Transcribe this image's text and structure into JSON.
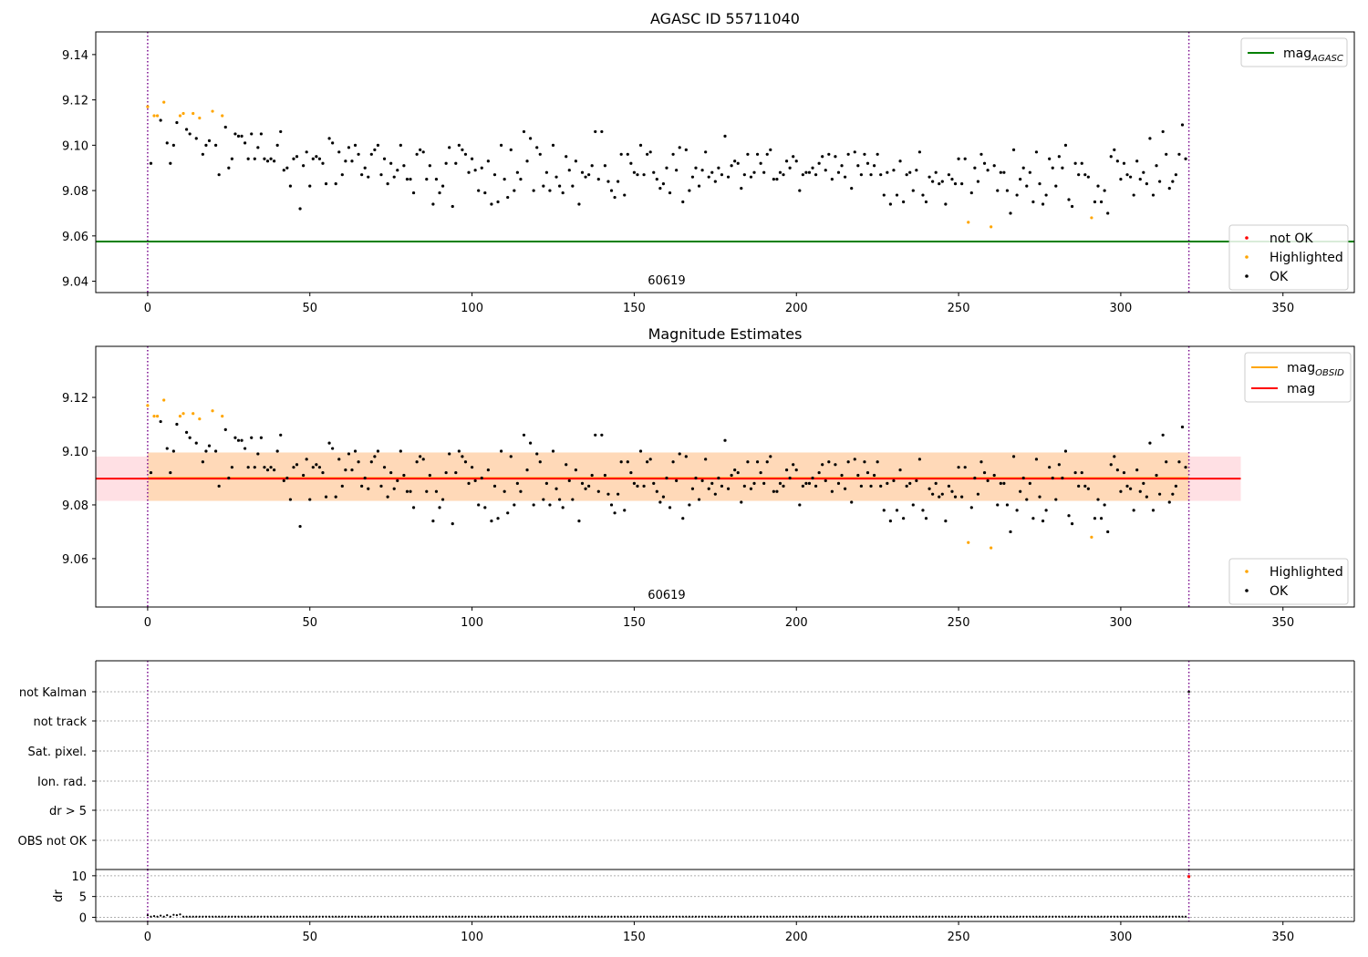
{
  "chart_data": [
    {
      "type": "scatter",
      "title": "AGASC ID 55711040",
      "ylim": [
        9.035,
        9.15
      ],
      "xlim": [
        -16,
        372
      ],
      "xticks": [
        0,
        50,
        100,
        150,
        200,
        250,
        300,
        350
      ],
      "yticks": [
        "9.04",
        "9.06",
        "9.08",
        "9.10",
        "9.12",
        "9.14"
      ],
      "hlines": [
        {
          "name": "mag_AGASC",
          "y": 9.0575,
          "color": "#008000"
        }
      ],
      "vlines": [
        0,
        321
      ],
      "obsid_label": {
        "text": "60619",
        "x": 160
      },
      "legend_lines": [
        {
          "label": "mag",
          "sub": "AGASC",
          "color": "#008000"
        }
      ],
      "legend_points": [
        {
          "label": "not OK",
          "color": "#ff0000"
        },
        {
          "label": "Highlighted",
          "color": "#ffa500"
        },
        {
          "label": "OK",
          "color": "#000000"
        }
      ],
      "series": "shared.points"
    },
    {
      "type": "scatter",
      "title": "Magnitude Estimates",
      "ylim": [
        9.042,
        9.139
      ],
      "xlim": [
        -16,
        372
      ],
      "xticks": [
        0,
        50,
        100,
        150,
        200,
        250,
        300,
        350
      ],
      "yticks": [
        "9.06",
        "9.08",
        "9.10",
        "9.12"
      ],
      "hlines": [
        {
          "name": "mag_OBSID",
          "y": 9.09,
          "color": "#ffa500",
          "xrange": [
            0,
            321
          ],
          "band": [
            9.0815,
            9.0995
          ],
          "band_color": "#ffd9b8"
        },
        {
          "name": "mag",
          "y": 9.0898,
          "color": "#ff0000",
          "xrange": [
            -16,
            337
          ],
          "band": [
            9.0815,
            9.098
          ],
          "band_color": "#ffe0e4"
        }
      ],
      "vlines": [
        0,
        321
      ],
      "obsid_label": {
        "text": "60619",
        "x": 160
      },
      "legend_lines": [
        {
          "label": "mag",
          "sub": "OBSID",
          "color": "#ffa500"
        },
        {
          "label": "mag",
          "sub": "",
          "color": "#ff0000"
        }
      ],
      "legend_points": [
        {
          "label": "Highlighted",
          "color": "#ffa500"
        },
        {
          "label": "OK",
          "color": "#000000"
        }
      ]
    },
    {
      "type": "flags",
      "categories": [
        "not Kalman",
        "not track",
        "Sat. pixel.",
        "Ion. rad.",
        "dr > 5",
        "OBS not OK"
      ],
      "xlim": [
        -16,
        372
      ],
      "xticks": [
        0,
        50,
        100,
        150,
        200,
        250,
        300,
        350
      ],
      "vlines": [
        0,
        321
      ]
    },
    {
      "type": "scatter",
      "ylabel": "dr",
      "ylim": [
        -1,
        11.5
      ],
      "yticks": [
        0,
        5,
        10
      ],
      "xlim": [
        -16,
        372
      ],
      "xticks": [
        0,
        50,
        100,
        150,
        200,
        250,
        300,
        350
      ],
      "vlines": [
        0,
        321
      ]
    }
  ],
  "shared": {
    "highlighted": [
      [
        0,
        9.117
      ],
      [
        2,
        9.113
      ],
      [
        3,
        9.113
      ],
      [
        5,
        9.119
      ],
      [
        10,
        9.113
      ],
      [
        11,
        9.114
      ],
      [
        14,
        9.114
      ],
      [
        16,
        9.112
      ],
      [
        20,
        9.115
      ],
      [
        23,
        9.113
      ],
      [
        253,
        9.066
      ],
      [
        260,
        9.064
      ],
      [
        291,
        9.068
      ]
    ],
    "points": [
      [
        1,
        9.092
      ],
      [
        4,
        9.111
      ],
      [
        6,
        9.101
      ],
      [
        7,
        9.092
      ],
      [
        8,
        9.1
      ],
      [
        9,
        9.11
      ],
      [
        12,
        9.107
      ],
      [
        13,
        9.105
      ],
      [
        15,
        9.103
      ],
      [
        17,
        9.096
      ],
      [
        18,
        9.1
      ],
      [
        19,
        9.102
      ],
      [
        21,
        9.1
      ],
      [
        22,
        9.087
      ],
      [
        24,
        9.108
      ],
      [
        25,
        9.09
      ],
      [
        26,
        9.094
      ],
      [
        27,
        9.105
      ],
      [
        28,
        9.104
      ],
      [
        29,
        9.104
      ],
      [
        30,
        9.101
      ],
      [
        31,
        9.094
      ],
      [
        32,
        9.105
      ],
      [
        33,
        9.094
      ],
      [
        34,
        9.099
      ],
      [
        35,
        9.105
      ],
      [
        36,
        9.094
      ],
      [
        37,
        9.093
      ],
      [
        38,
        9.094
      ],
      [
        39,
        9.093
      ],
      [
        40,
        9.1
      ],
      [
        41,
        9.106
      ],
      [
        42,
        9.089
      ],
      [
        43,
        9.09
      ],
      [
        44,
        9.082
      ],
      [
        45,
        9.094
      ],
      [
        46,
        9.095
      ],
      [
        47,
        9.072
      ],
      [
        48,
        9.091
      ],
      [
        49,
        9.097
      ],
      [
        50,
        9.082
      ],
      [
        51,
        9.094
      ],
      [
        52,
        9.095
      ],
      [
        53,
        9.094
      ],
      [
        54,
        9.092
      ],
      [
        55,
        9.083
      ],
      [
        56,
        9.103
      ],
      [
        57,
        9.101
      ],
      [
        58,
        9.083
      ],
      [
        59,
        9.097
      ],
      [
        60,
        9.087
      ],
      [
        61,
        9.093
      ],
      [
        62,
        9.099
      ],
      [
        63,
        9.093
      ],
      [
        64,
        9.1
      ],
      [
        65,
        9.096
      ],
      [
        66,
        9.087
      ],
      [
        67,
        9.09
      ],
      [
        68,
        9.086
      ],
      [
        69,
        9.096
      ],
      [
        70,
        9.098
      ],
      [
        71,
        9.1
      ],
      [
        72,
        9.087
      ],
      [
        73,
        9.094
      ],
      [
        74,
        9.083
      ],
      [
        75,
        9.092
      ],
      [
        76,
        9.086
      ],
      [
        77,
        9.089
      ],
      [
        78,
        9.1
      ],
      [
        79,
        9.091
      ],
      [
        80,
        9.085
      ],
      [
        81,
        9.085
      ],
      [
        82,
        9.079
      ],
      [
        83,
        9.096
      ],
      [
        84,
        9.098
      ],
      [
        85,
        9.097
      ],
      [
        86,
        9.085
      ],
      [
        87,
        9.091
      ],
      [
        88,
        9.074
      ],
      [
        89,
        9.085
      ],
      [
        90,
        9.079
      ],
      [
        91,
        9.082
      ],
      [
        92,
        9.092
      ],
      [
        93,
        9.099
      ],
      [
        94,
        9.073
      ],
      [
        95,
        9.092
      ],
      [
        96,
        9.1
      ],
      [
        97,
        9.098
      ],
      [
        98,
        9.096
      ],
      [
        99,
        9.088
      ],
      [
        100,
        9.094
      ],
      [
        101,
        9.089
      ],
      [
        102,
        9.08
      ],
      [
        103,
        9.09
      ],
      [
        104,
        9.079
      ],
      [
        105,
        9.093
      ],
      [
        106,
        9.074
      ],
      [
        107,
        9.087
      ],
      [
        108,
        9.075
      ],
      [
        109,
        9.1
      ],
      [
        110,
        9.085
      ],
      [
        111,
        9.077
      ],
      [
        112,
        9.098
      ],
      [
        113,
        9.08
      ],
      [
        114,
        9.088
      ],
      [
        115,
        9.085
      ],
      [
        116,
        9.106
      ],
      [
        117,
        9.093
      ],
      [
        118,
        9.103
      ],
      [
        119,
        9.08
      ],
      [
        120,
        9.099
      ],
      [
        121,
        9.096
      ],
      [
        122,
        9.082
      ],
      [
        123,
        9.088
      ],
      [
        124,
        9.08
      ],
      [
        125,
        9.1
      ],
      [
        126,
        9.086
      ],
      [
        127,
        9.082
      ],
      [
        128,
        9.079
      ],
      [
        129,
        9.095
      ],
      [
        130,
        9.089
      ],
      [
        131,
        9.082
      ],
      [
        132,
        9.093
      ],
      [
        133,
        9.074
      ],
      [
        134,
        9.088
      ],
      [
        135,
        9.086
      ],
      [
        136,
        9.087
      ],
      [
        137,
        9.091
      ],
      [
        138,
        9.106
      ],
      [
        139,
        9.085
      ],
      [
        140,
        9.106
      ],
      [
        141,
        9.091
      ],
      [
        142,
        9.084
      ],
      [
        143,
        9.08
      ],
      [
        144,
        9.077
      ],
      [
        145,
        9.084
      ],
      [
        146,
        9.096
      ],
      [
        147,
        9.078
      ],
      [
        148,
        9.096
      ],
      [
        149,
        9.092
      ],
      [
        150,
        9.088
      ],
      [
        151,
        9.087
      ],
      [
        152,
        9.1
      ],
      [
        153,
        9.087
      ],
      [
        154,
        9.096
      ],
      [
        155,
        9.097
      ],
      [
        156,
        9.088
      ],
      [
        157,
        9.085
      ],
      [
        158,
        9.081
      ],
      [
        159,
        9.083
      ],
      [
        160,
        9.09
      ],
      [
        161,
        9.079
      ],
      [
        162,
        9.096
      ],
      [
        163,
        9.089
      ],
      [
        164,
        9.099
      ],
      [
        165,
        9.075
      ],
      [
        166,
        9.098
      ],
      [
        167,
        9.08
      ],
      [
        168,
        9.086
      ],
      [
        169,
        9.09
      ],
      [
        170,
        9.082
      ],
      [
        171,
        9.089
      ],
      [
        172,
        9.097
      ],
      [
        173,
        9.086
      ],
      [
        174,
        9.088
      ],
      [
        175,
        9.084
      ],
      [
        176,
        9.09
      ],
      [
        177,
        9.087
      ],
      [
        178,
        9.104
      ],
      [
        179,
        9.086
      ],
      [
        180,
        9.091
      ],
      [
        181,
        9.093
      ],
      [
        182,
        9.092
      ],
      [
        183,
        9.081
      ],
      [
        184,
        9.087
      ],
      [
        185,
        9.096
      ],
      [
        186,
        9.086
      ],
      [
        187,
        9.088
      ],
      [
        188,
        9.096
      ],
      [
        189,
        9.092
      ],
      [
        190,
        9.088
      ],
      [
        191,
        9.096
      ],
      [
        192,
        9.098
      ],
      [
        193,
        9.085
      ],
      [
        194,
        9.085
      ],
      [
        195,
        9.088
      ],
      [
        196,
        9.087
      ],
      [
        197,
        9.093
      ],
      [
        198,
        9.09
      ],
      [
        199,
        9.095
      ],
      [
        200,
        9.093
      ],
      [
        201,
        9.08
      ],
      [
        202,
        9.087
      ],
      [
        203,
        9.088
      ],
      [
        204,
        9.088
      ],
      [
        205,
        9.09
      ],
      [
        206,
        9.087
      ],
      [
        207,
        9.092
      ],
      [
        208,
        9.095
      ],
      [
        209,
        9.089
      ],
      [
        210,
        9.096
      ],
      [
        211,
        9.085
      ],
      [
        212,
        9.095
      ],
      [
        213,
        9.088
      ],
      [
        214,
        9.091
      ],
      [
        215,
        9.086
      ],
      [
        216,
        9.096
      ],
      [
        217,
        9.081
      ],
      [
        218,
        9.097
      ],
      [
        219,
        9.091
      ],
      [
        220,
        9.087
      ],
      [
        221,
        9.096
      ],
      [
        222,
        9.092
      ],
      [
        223,
        9.087
      ],
      [
        224,
        9.091
      ],
      [
        225,
        9.096
      ],
      [
        226,
        9.087
      ],
      [
        227,
        9.078
      ],
      [
        228,
        9.088
      ],
      [
        229,
        9.074
      ],
      [
        230,
        9.089
      ],
      [
        231,
        9.078
      ],
      [
        232,
        9.093
      ],
      [
        233,
        9.075
      ],
      [
        234,
        9.087
      ],
      [
        235,
        9.088
      ],
      [
        236,
        9.08
      ],
      [
        237,
        9.089
      ],
      [
        238,
        9.097
      ],
      [
        239,
        9.078
      ],
      [
        240,
        9.075
      ],
      [
        241,
        9.086
      ],
      [
        242,
        9.084
      ],
      [
        243,
        9.088
      ],
      [
        244,
        9.083
      ],
      [
        245,
        9.084
      ],
      [
        246,
        9.074
      ],
      [
        247,
        9.087
      ],
      [
        248,
        9.085
      ],
      [
        249,
        9.083
      ],
      [
        250,
        9.094
      ],
      [
        251,
        9.083
      ],
      [
        252,
        9.094
      ],
      [
        254,
        9.079
      ],
      [
        255,
        9.09
      ],
      [
        256,
        9.084
      ],
      [
        257,
        9.096
      ],
      [
        258,
        9.092
      ],
      [
        259,
        9.089
      ],
      [
        261,
        9.091
      ],
      [
        262,
        9.08
      ],
      [
        263,
        9.088
      ],
      [
        264,
        9.088
      ],
      [
        265,
        9.08
      ],
      [
        266,
        9.07
      ],
      [
        267,
        9.098
      ],
      [
        268,
        9.078
      ],
      [
        269,
        9.085
      ],
      [
        270,
        9.09
      ],
      [
        271,
        9.082
      ],
      [
        272,
        9.088
      ],
      [
        273,
        9.075
      ],
      [
        274,
        9.097
      ],
      [
        275,
        9.083
      ],
      [
        276,
        9.074
      ],
      [
        277,
        9.078
      ],
      [
        278,
        9.094
      ],
      [
        279,
        9.09
      ],
      [
        280,
        9.082
      ],
      [
        281,
        9.095
      ],
      [
        282,
        9.09
      ],
      [
        283,
        9.1
      ],
      [
        284,
        9.076
      ],
      [
        285,
        9.073
      ],
      [
        286,
        9.092
      ],
      [
        287,
        9.087
      ],
      [
        288,
        9.092
      ],
      [
        289,
        9.087
      ],
      [
        290,
        9.086
      ],
      [
        292,
        9.075
      ],
      [
        293,
        9.082
      ],
      [
        294,
        9.075
      ],
      [
        295,
        9.08
      ],
      [
        296,
        9.07
      ],
      [
        297,
        9.095
      ],
      [
        298,
        9.098
      ],
      [
        299,
        9.093
      ],
      [
        300,
        9.085
      ],
      [
        301,
        9.092
      ],
      [
        302,
        9.087
      ],
      [
        303,
        9.086
      ],
      [
        304,
        9.078
      ],
      [
        305,
        9.093
      ],
      [
        306,
        9.085
      ],
      [
        307,
        9.088
      ],
      [
        308,
        9.083
      ],
      [
        309,
        9.103
      ],
      [
        310,
        9.078
      ],
      [
        311,
        9.091
      ],
      [
        312,
        9.084
      ],
      [
        313,
        9.106
      ],
      [
        314,
        9.096
      ],
      [
        315,
        9.081
      ],
      [
        316,
        9.084
      ],
      [
        317,
        9.087
      ],
      [
        318,
        9.096
      ],
      [
        319,
        9.109
      ],
      [
        320,
        9.094
      ]
    ],
    "dr_values": [
      [
        0,
        0.5
      ],
      [
        2,
        0.3
      ],
      [
        4,
        0.4
      ],
      [
        6,
        0.5
      ],
      [
        8,
        0.6
      ],
      [
        9,
        0.5
      ],
      [
        10,
        0.7
      ]
    ],
    "dr_red": [
      [
        321,
        9.8
      ]
    ]
  },
  "labels": {
    "dr_ylabel": "dr"
  }
}
